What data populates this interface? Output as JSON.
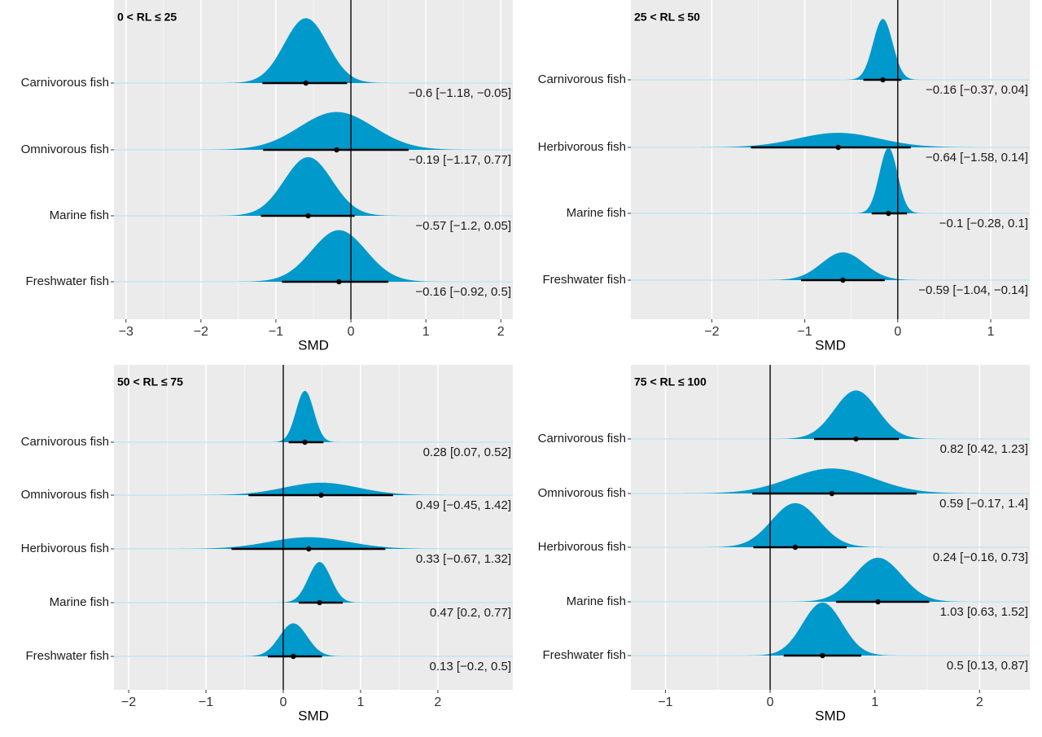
{
  "chart_data": [
    {
      "type": "density",
      "title": "0 < RL ≤ 25",
      "xlabel": "SMD",
      "color": "#0099cc",
      "grid": true,
      "reference_line": 0,
      "categories": [
        "Carnivorous fish",
        "Omnivorous fish",
        "Marine fish",
        "Freshwater fish"
      ],
      "values": [
        -0.6,
        -0.19,
        -0.57,
        -0.16
      ],
      "lower": [
        -1.18,
        -1.17,
        -1.2,
        -0.92
      ],
      "upper": [
        -0.05,
        0.77,
        0.05,
        0.5
      ],
      "value_labels": [
        "−0.6 [−1.18, −0.05]",
        "−0.19 [−1.17, 0.77]",
        "−0.57 [−1.2, 0.05]",
        "−0.16 [−0.92, 0.5]"
      ],
      "xlim": [
        -3.16,
        2.16
      ],
      "xticks": [
        {
          "value": -3,
          "label": "−3"
        },
        {
          "value": -2,
          "label": "−2"
        },
        {
          "value": -1,
          "label": "−1"
        },
        0,
        1,
        2
      ]
    },
    {
      "type": "density",
      "title": "25 < RL ≤ 50",
      "xlabel": "SMD",
      "color": "#0099cc",
      "grid": true,
      "reference_line": 0,
      "categories": [
        "Carnivorous fish",
        "Herbivorous fish",
        "Marine fish",
        "Freshwater fish"
      ],
      "values": [
        -0.16,
        -0.64,
        -0.1,
        -0.59
      ],
      "lower": [
        -0.37,
        -1.58,
        -0.28,
        -1.04
      ],
      "upper": [
        0.04,
        0.14,
        0.1,
        -0.14
      ],
      "value_labels": [
        "−0.16 [−0.37, 0.04]",
        "−0.64 [−1.58, 0.14]",
        "−0.1 [−0.28, 0.1]",
        "−0.59 [−1.04, −0.14]"
      ],
      "xlim": [
        -2.87,
        1.42
      ],
      "xticks": [
        {
          "value": -2,
          "label": "−2"
        },
        {
          "value": -1,
          "label": "−1"
        },
        0,
        1
      ]
    },
    {
      "type": "density",
      "title": "50 < RL ≤ 75",
      "xlabel": "SMD",
      "color": "#0099cc",
      "grid": true,
      "reference_line": 0,
      "categories": [
        "Carnivorous fish",
        "Omnivorous fish",
        "Herbivorous fish",
        "Marine fish",
        "Freshwater fish"
      ],
      "values": [
        0.28,
        0.49,
        0.33,
        0.47,
        0.13
      ],
      "lower": [
        0.07,
        -0.45,
        -0.67,
        0.2,
        -0.2
      ],
      "upper": [
        0.52,
        1.42,
        1.32,
        0.77,
        0.5
      ],
      "value_labels": [
        "0.28 [0.07, 0.52]",
        "0.49 [−0.45, 1.42]",
        "0.33 [−0.67, 1.32]",
        "0.47 [0.2, 0.77]",
        "0.13 [−0.2, 0.5]"
      ],
      "xlim": [
        -2.19,
        2.97
      ],
      "xticks": [
        {
          "value": -2,
          "label": "−2"
        },
        {
          "value": -1,
          "label": "−1"
        },
        0,
        1,
        2
      ]
    },
    {
      "type": "density",
      "title": "75 < RL ≤ 100",
      "xlabel": "SMD",
      "color": "#0099cc",
      "grid": true,
      "reference_line": 0,
      "categories": [
        "Carnivorous fish",
        "Omnivorous fish",
        "Herbivorous fish",
        "Marine fish",
        "Freshwater fish"
      ],
      "values": [
        0.82,
        0.59,
        0.24,
        1.03,
        0.5
      ],
      "lower": [
        0.42,
        -0.17,
        -0.16,
        0.63,
        0.13
      ],
      "upper": [
        1.23,
        1.4,
        0.73,
        1.52,
        0.87
      ],
      "value_labels": [
        "0.82 [0.42, 1.23]",
        "0.59 [−0.17, 1.4]",
        "0.24 [−0.16, 0.73]",
        "1.03 [0.63, 1.52]",
        "0.5 [0.13, 0.87]"
      ],
      "xlim": [
        -1.33,
        2.48
      ],
      "xticks": [
        {
          "value": -1,
          "label": "−1"
        },
        0,
        1,
        2
      ]
    }
  ]
}
